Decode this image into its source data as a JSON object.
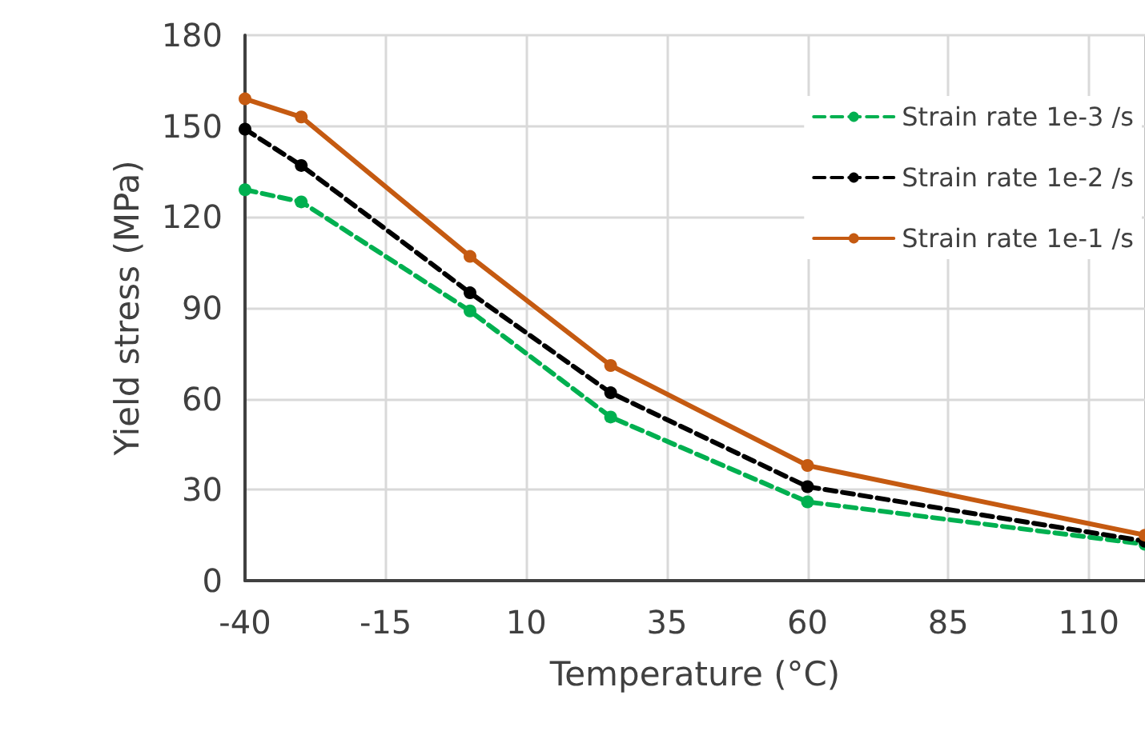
{
  "chart_data": {
    "type": "line",
    "xlabel": "Temperature (°C)",
    "ylabel": "Yield stress (MPa)",
    "x": [
      -40,
      -30,
      0,
      25,
      60,
      120
    ],
    "series": [
      {
        "name": "Strain rate 1e-3 /s",
        "color": "#00b050",
        "values": [
          129,
          125,
          89,
          54,
          26,
          12
        ],
        "line_style": "dashed"
      },
      {
        "name": "Strain rate 1e-2 /s",
        "color": "#000000",
        "values": [
          149,
          137,
          95,
          62,
          31,
          13
        ],
        "line_style": "dashed"
      },
      {
        "name": "Strain rate 1e-1 /s",
        "color": "#c55a11",
        "values": [
          159,
          153,
          107,
          71,
          38,
          15
        ],
        "line_style": "solid"
      }
    ],
    "xlim": [
      -40,
      120
    ],
    "xticks": [
      -40,
      -15,
      10,
      35,
      60,
      85,
      110
    ],
    "ylim": [
      0,
      180
    ],
    "yticks": [
      0,
      30,
      60,
      90,
      120,
      150,
      180
    ],
    "grid": true,
    "legend": "top right",
    "marker": "circle"
  }
}
